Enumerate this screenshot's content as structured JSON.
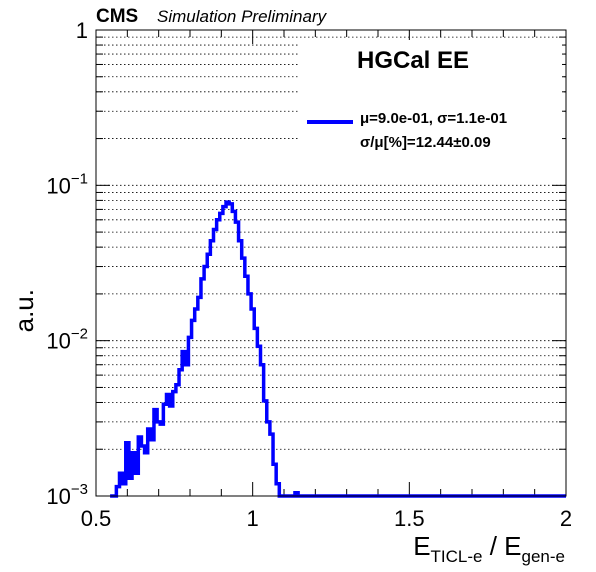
{
  "header": {
    "experiment": "CMS",
    "status": "Simulation Preliminary"
  },
  "chart_data": {
    "type": "line",
    "panel_label": "HGCal EE",
    "xlabel": {
      "main": "E",
      "sub1": "TICL-e",
      "mid": " / E",
      "sub2": "gen-e"
    },
    "ylabel": "a.u.",
    "xlim": [
      0.5,
      2.0
    ],
    "ylim": [
      0.001,
      1.0
    ],
    "yscale": "log",
    "grid": true,
    "x_ticks": [
      {
        "value": 0.5,
        "label": "0.5"
      },
      {
        "value": 1.0,
        "label": "1"
      },
      {
        "value": 1.5,
        "label": "1.5"
      },
      {
        "value": 2.0,
        "label": "2"
      }
    ],
    "y_ticks": [
      {
        "value": 0.001,
        "base": "10",
        "exp": "−3"
      },
      {
        "value": 0.01,
        "base": "10",
        "exp": "−2"
      },
      {
        "value": 0.1,
        "base": "10",
        "exp": "−1"
      },
      {
        "value": 1.0,
        "base": "1",
        "exp": ""
      }
    ],
    "legend": {
      "position": "top-right",
      "line1": "μ=9.0e-01,  σ=1.1e-01",
      "line2": "σ/μ[%]=12.44±0.09"
    },
    "series": [
      {
        "color": "#0000ff",
        "bin_width": 0.01,
        "x": [
          0.55,
          0.56,
          0.57,
          0.58,
          0.59,
          0.6,
          0.61,
          0.62,
          0.63,
          0.64,
          0.65,
          0.66,
          0.67,
          0.68,
          0.69,
          0.7,
          0.71,
          0.72,
          0.73,
          0.74,
          0.75,
          0.76,
          0.77,
          0.78,
          0.79,
          0.8,
          0.81,
          0.82,
          0.83,
          0.84,
          0.85,
          0.86,
          0.87,
          0.88,
          0.89,
          0.9,
          0.91,
          0.92,
          0.93,
          0.94,
          0.95,
          0.96,
          0.97,
          0.98,
          0.99,
          1.0,
          1.01,
          1.02,
          1.03,
          1.04,
          1.05,
          1.06,
          1.07,
          1.08,
          1.09,
          1.1,
          1.11,
          1.12,
          1.13,
          1.14,
          1.15,
          1.16,
          1.17
        ],
        "values": [
          0.001,
          0.001,
          0.00115,
          0.0014,
          0.0012,
          0.0022,
          0.0013,
          0.0019,
          0.0014,
          0.0024,
          0.0021,
          0.0019,
          0.0027,
          0.0023,
          0.0036,
          0.003,
          0.0029,
          0.0039,
          0.0045,
          0.0038,
          0.0047,
          0.0052,
          0.0065,
          0.0085,
          0.007,
          0.0105,
          0.0135,
          0.016,
          0.019,
          0.025,
          0.03,
          0.036,
          0.044,
          0.052,
          0.06,
          0.066,
          0.073,
          0.078,
          0.076,
          0.068,
          0.058,
          0.044,
          0.034,
          0.026,
          0.02,
          0.016,
          0.012,
          0.0092,
          0.007,
          0.0041,
          0.003,
          0.0025,
          0.0016,
          0.0012,
          0.001,
          0.001,
          0.001,
          0.001,
          0.001,
          0.00105,
          0.001,
          0.001,
          0.001
        ]
      }
    ]
  }
}
